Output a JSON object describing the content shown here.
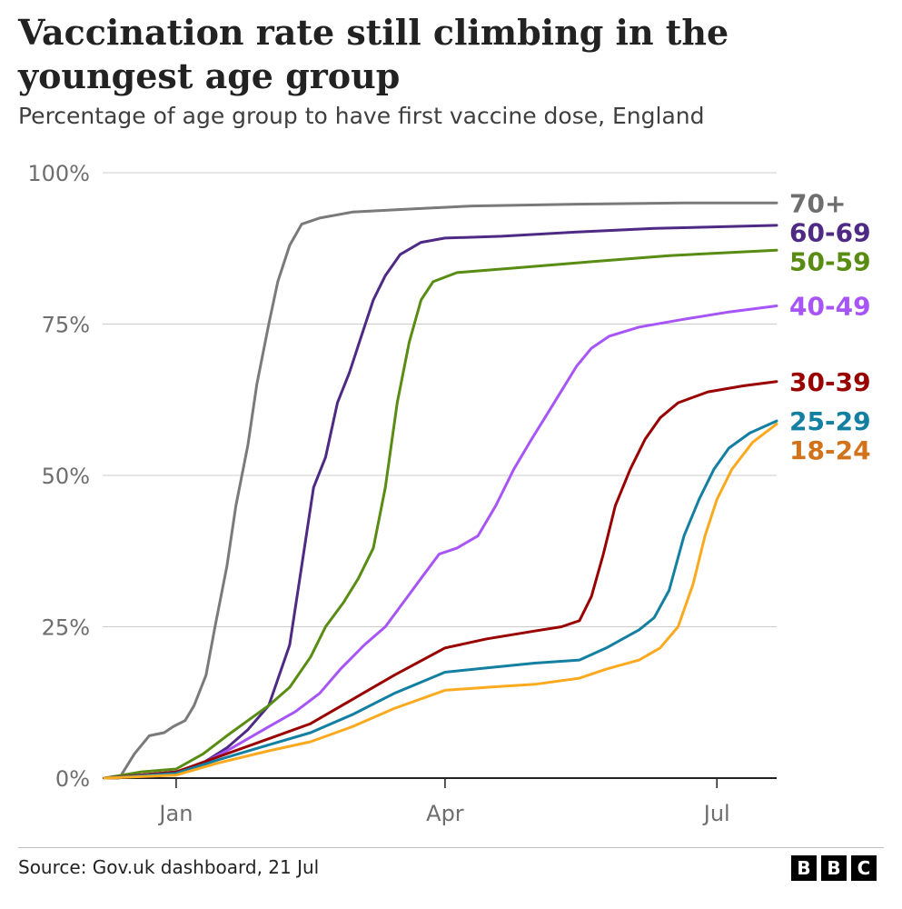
{
  "title": "Vaccination rate still climbing in the youngest age group",
  "subtitle": "Percentage of age group to have first vaccine dose, England",
  "source": "Source: Gov.uk dashboard, 21 Jul",
  "logo": [
    "B",
    "B",
    "C"
  ],
  "chart_data": {
    "type": "line",
    "x_unit": "date",
    "x_domain": [
      "2020-12-08",
      "2021-07-21"
    ],
    "y_range": [
      0,
      100
    ],
    "y_ticks": [
      {
        "value": 0,
        "label": "0%"
      },
      {
        "value": 25,
        "label": "25%"
      },
      {
        "value": 50,
        "label": "50%"
      },
      {
        "value": 75,
        "label": "75%"
      },
      {
        "value": 100,
        "label": "100%"
      }
    ],
    "x_ticks": [
      {
        "date": "2021-01-01",
        "label": "Jan"
      },
      {
        "date": "2021-04-01",
        "label": "Apr"
      },
      {
        "date": "2021-07-01",
        "label": "Jul"
      }
    ],
    "grid": "horizontal",
    "legend": "direct labels at line ends",
    "series": [
      {
        "name": "70+",
        "color": "#7a7a7a",
        "label_color": "#6e6e6e",
        "points": [
          [
            "2020-12-08",
            0
          ],
          [
            "2020-12-13",
            0
          ],
          [
            "2020-12-18",
            4
          ],
          [
            "2020-12-23",
            7
          ],
          [
            "2020-12-28",
            7.5
          ],
          [
            "2020-12-31",
            8.5
          ],
          [
            "2021-01-04",
            9.5
          ],
          [
            "2021-01-07",
            12
          ],
          [
            "2021-01-11",
            17
          ],
          [
            "2021-01-14",
            25
          ],
          [
            "2021-01-18",
            35
          ],
          [
            "2021-01-21",
            45
          ],
          [
            "2021-01-25",
            55
          ],
          [
            "2021-01-28",
            65
          ],
          [
            "2021-02-01",
            75
          ],
          [
            "2021-02-04",
            82
          ],
          [
            "2021-02-08",
            88
          ],
          [
            "2021-02-12",
            91.5
          ],
          [
            "2021-02-18",
            92.5
          ],
          [
            "2021-03-01",
            93.5
          ],
          [
            "2021-03-20",
            94
          ],
          [
            "2021-04-10",
            94.5
          ],
          [
            "2021-05-15",
            94.8
          ],
          [
            "2021-06-20",
            95
          ],
          [
            "2021-07-21",
            95
          ]
        ]
      },
      {
        "name": "60-69",
        "color": "#4e2a84",
        "label_color": "#4e2a84",
        "points": [
          [
            "2020-12-08",
            0
          ],
          [
            "2020-12-20",
            0.5
          ],
          [
            "2021-01-01",
            1
          ],
          [
            "2021-01-10",
            2.5
          ],
          [
            "2021-01-18",
            5
          ],
          [
            "2021-01-25",
            8
          ],
          [
            "2021-02-01",
            12
          ],
          [
            "2021-02-08",
            22
          ],
          [
            "2021-02-12",
            35
          ],
          [
            "2021-02-16",
            48
          ],
          [
            "2021-02-20",
            53
          ],
          [
            "2021-02-24",
            62
          ],
          [
            "2021-02-28",
            67
          ],
          [
            "2021-03-04",
            73
          ],
          [
            "2021-03-08",
            79
          ],
          [
            "2021-03-12",
            83
          ],
          [
            "2021-03-17",
            86.5
          ],
          [
            "2021-03-24",
            88.5
          ],
          [
            "2021-04-01",
            89.2
          ],
          [
            "2021-04-20",
            89.5
          ],
          [
            "2021-05-15",
            90.2
          ],
          [
            "2021-06-10",
            90.8
          ],
          [
            "2021-07-21",
            91.3
          ]
        ]
      },
      {
        "name": "50-59",
        "color": "#588c12",
        "label_color": "#588c12",
        "points": [
          [
            "2020-12-08",
            0
          ],
          [
            "2020-12-20",
            1
          ],
          [
            "2021-01-01",
            1.5
          ],
          [
            "2021-01-10",
            4
          ],
          [
            "2021-01-18",
            7
          ],
          [
            "2021-01-25",
            9.5
          ],
          [
            "2021-02-01",
            12
          ],
          [
            "2021-02-08",
            15
          ],
          [
            "2021-02-15",
            20
          ],
          [
            "2021-02-20",
            25
          ],
          [
            "2021-02-26",
            29
          ],
          [
            "2021-03-03",
            33
          ],
          [
            "2021-03-08",
            38
          ],
          [
            "2021-03-12",
            48
          ],
          [
            "2021-03-16",
            62
          ],
          [
            "2021-03-20",
            72
          ],
          [
            "2021-03-24",
            79
          ],
          [
            "2021-03-28",
            82
          ],
          [
            "2021-04-05",
            83.5
          ],
          [
            "2021-04-25",
            84.3
          ],
          [
            "2021-05-20",
            85.3
          ],
          [
            "2021-06-15",
            86.3
          ],
          [
            "2021-07-21",
            87.2
          ]
        ]
      },
      {
        "name": "40-49",
        "color": "#a855f7",
        "label_color": "#a855f7",
        "points": [
          [
            "2020-12-08",
            0
          ],
          [
            "2020-12-20",
            0.5
          ],
          [
            "2021-01-01",
            1
          ],
          [
            "2021-01-10",
            2.5
          ],
          [
            "2021-01-18",
            4.5
          ],
          [
            "2021-01-25",
            6.5
          ],
          [
            "2021-02-01",
            8.5
          ],
          [
            "2021-02-10",
            11
          ],
          [
            "2021-02-18",
            14
          ],
          [
            "2021-02-25",
            18
          ],
          [
            "2021-03-05",
            22
          ],
          [
            "2021-03-12",
            25
          ],
          [
            "2021-03-18",
            29
          ],
          [
            "2021-03-24",
            33
          ],
          [
            "2021-03-30",
            37
          ],
          [
            "2021-04-05",
            38
          ],
          [
            "2021-04-12",
            40
          ],
          [
            "2021-04-18",
            45
          ],
          [
            "2021-04-24",
            51
          ],
          [
            "2021-04-30",
            56
          ],
          [
            "2021-05-05",
            60
          ],
          [
            "2021-05-10",
            64
          ],
          [
            "2021-05-15",
            68
          ],
          [
            "2021-05-20",
            71
          ],
          [
            "2021-05-26",
            73
          ],
          [
            "2021-06-05",
            74.5
          ],
          [
            "2021-06-20",
            75.8
          ],
          [
            "2021-07-05",
            77
          ],
          [
            "2021-07-21",
            78
          ]
        ]
      },
      {
        "name": "30-39",
        "color": "#990000",
        "label_color": "#990000",
        "points": [
          [
            "2020-12-08",
            0
          ],
          [
            "2021-01-01",
            1
          ],
          [
            "2021-01-15",
            3.5
          ],
          [
            "2021-02-01",
            6.5
          ],
          [
            "2021-02-15",
            9
          ],
          [
            "2021-03-01",
            13
          ],
          [
            "2021-03-15",
            17
          ],
          [
            "2021-04-01",
            21.5
          ],
          [
            "2021-04-15",
            23
          ],
          [
            "2021-05-01",
            24.3
          ],
          [
            "2021-05-10",
            25
          ],
          [
            "2021-05-16",
            26
          ],
          [
            "2021-05-20",
            30
          ],
          [
            "2021-05-24",
            37
          ],
          [
            "2021-05-28",
            45
          ],
          [
            "2021-06-02",
            51
          ],
          [
            "2021-06-07",
            56
          ],
          [
            "2021-06-12",
            59.5
          ],
          [
            "2021-06-18",
            62
          ],
          [
            "2021-06-28",
            63.8
          ],
          [
            "2021-07-10",
            64.8
          ],
          [
            "2021-07-21",
            65.5
          ]
        ]
      },
      {
        "name": "25-29",
        "color": "#1380a1",
        "label_color": "#1380a1",
        "points": [
          [
            "2020-12-08",
            0
          ],
          [
            "2021-01-01",
            0.8
          ],
          [
            "2021-01-15",
            3
          ],
          [
            "2021-02-01",
            5.5
          ],
          [
            "2021-02-15",
            7.5
          ],
          [
            "2021-03-01",
            10.5
          ],
          [
            "2021-03-15",
            14
          ],
          [
            "2021-04-01",
            17.5
          ],
          [
            "2021-04-15",
            18.2
          ],
          [
            "2021-05-01",
            19
          ],
          [
            "2021-05-16",
            19.5
          ],
          [
            "2021-05-25",
            21.5
          ],
          [
            "2021-06-05",
            24.5
          ],
          [
            "2021-06-10",
            26.5
          ],
          [
            "2021-06-15",
            31
          ],
          [
            "2021-06-20",
            40
          ],
          [
            "2021-06-25",
            46
          ],
          [
            "2021-06-30",
            51
          ],
          [
            "2021-07-05",
            54.5
          ],
          [
            "2021-07-12",
            57
          ],
          [
            "2021-07-21",
            59
          ]
        ]
      },
      {
        "name": "18-24",
        "color": "#fbaa20",
        "label_color": "#d2721b",
        "points": [
          [
            "2020-12-08",
            0
          ],
          [
            "2021-01-01",
            0.5
          ],
          [
            "2021-01-15",
            2.5
          ],
          [
            "2021-02-01",
            4.5
          ],
          [
            "2021-02-15",
            6
          ],
          [
            "2021-03-01",
            8.5
          ],
          [
            "2021-03-15",
            11.5
          ],
          [
            "2021-04-01",
            14.5
          ],
          [
            "2021-04-15",
            15
          ],
          [
            "2021-05-01",
            15.5
          ],
          [
            "2021-05-16",
            16.5
          ],
          [
            "2021-05-25",
            18
          ],
          [
            "2021-06-05",
            19.5
          ],
          [
            "2021-06-12",
            21.5
          ],
          [
            "2021-06-18",
            25
          ],
          [
            "2021-06-23",
            32
          ],
          [
            "2021-06-27",
            40
          ],
          [
            "2021-07-01",
            46
          ],
          [
            "2021-07-06",
            51
          ],
          [
            "2021-07-13",
            55.5
          ],
          [
            "2021-07-21",
            58.5
          ]
        ]
      }
    ]
  }
}
